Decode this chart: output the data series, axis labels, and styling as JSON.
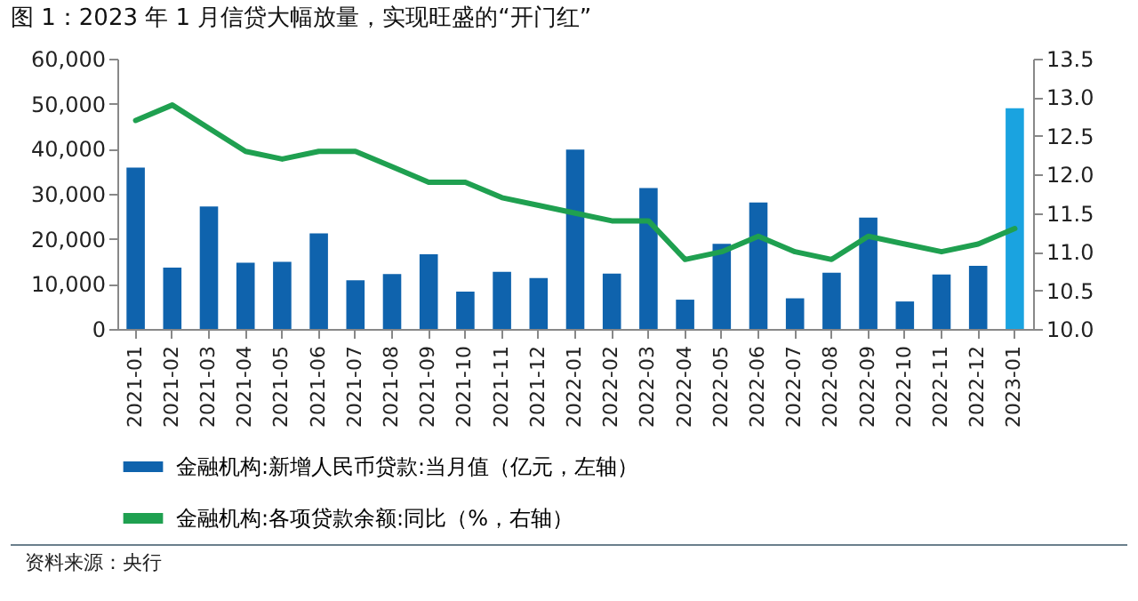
{
  "chart_data": {
    "type": "bar",
    "title": "图 1：2023 年 1 月信贷大幅放量，实现旺盛的“开门红”",
    "categories": [
      "2021-01",
      "2021-02",
      "2021-03",
      "2021-04",
      "2021-05",
      "2021-06",
      "2021-07",
      "2021-08",
      "2021-09",
      "2021-10",
      "2021-11",
      "2021-12",
      "2022-01",
      "2022-02",
      "2022-03",
      "2022-04",
      "2022-05",
      "2022-06",
      "2022-07",
      "2022-08",
      "2022-09",
      "2022-10",
      "2022-11",
      "2022-12",
      "2023-01"
    ],
    "series": [
      {
        "name": "金融机构:新增人民币贷款:当月值（亿元，左轴）",
        "color": "#0f63ad",
        "colors": [
          "#0f63ad",
          "#0f63ad",
          "#0f63ad",
          "#0f63ad",
          "#0f63ad",
          "#0f63ad",
          "#0f63ad",
          "#0f63ad",
          "#0f63ad",
          "#0f63ad",
          "#0f63ad",
          "#0f63ad",
          "#0f63ad",
          "#0f63ad",
          "#0f63ad",
          "#0f63ad",
          "#0f63ad",
          "#0f63ad",
          "#0f63ad",
          "#0f63ad",
          "#0f63ad",
          "#0f63ad",
          "#0f63ad",
          "#0f63ad",
          "#1aa3e0"
        ],
        "values": [
          35800,
          13600,
          27200,
          14700,
          14900,
          21200,
          10800,
          12200,
          16600,
          8300,
          12700,
          11300,
          39800,
          12300,
          31300,
          6500,
          18900,
          28100,
          6800,
          12500,
          24700,
          6100,
          12100,
          14000,
          49000
        ]
      },
      {
        "name": "金融机构:各项贷款余额:同比（%，右轴）",
        "type": "line",
        "axis": "y2",
        "color": "#1fa050",
        "values": [
          12.7,
          12.9,
          12.6,
          12.3,
          12.2,
          12.3,
          12.3,
          12.1,
          11.9,
          11.9,
          11.7,
          11.6,
          11.5,
          11.4,
          11.4,
          10.9,
          11.0,
          11.2,
          11.0,
          10.9,
          11.2,
          11.1,
          11.0,
          11.1,
          11.3
        ]
      }
    ],
    "ylim": [
      0,
      60000
    ],
    "yticks": [
      0,
      {
        "value": 10000,
        "label": "10,000"
      },
      {
        "value": 20000,
        "label": "20,000"
      },
      {
        "value": 30000,
        "label": "30,000"
      },
      {
        "value": 40000,
        "label": "40,000"
      },
      {
        "value": 50000,
        "label": "50,000"
      },
      {
        "value": 60000,
        "label": "60,000"
      }
    ],
    "y2lim": [
      10,
      13.5
    ],
    "y2ticks": [
      {
        "value": 10,
        "label": "10.0"
      },
      10.5,
      {
        "value": 11,
        "label": "11.0"
      },
      11.5,
      {
        "value": 12,
        "label": "12.0"
      },
      12.5,
      {
        "value": 13,
        "label": "13.0"
      },
      13.5
    ],
    "legend": "bottom",
    "grid": false,
    "annotations": [
      "资料来源：央行"
    ]
  }
}
